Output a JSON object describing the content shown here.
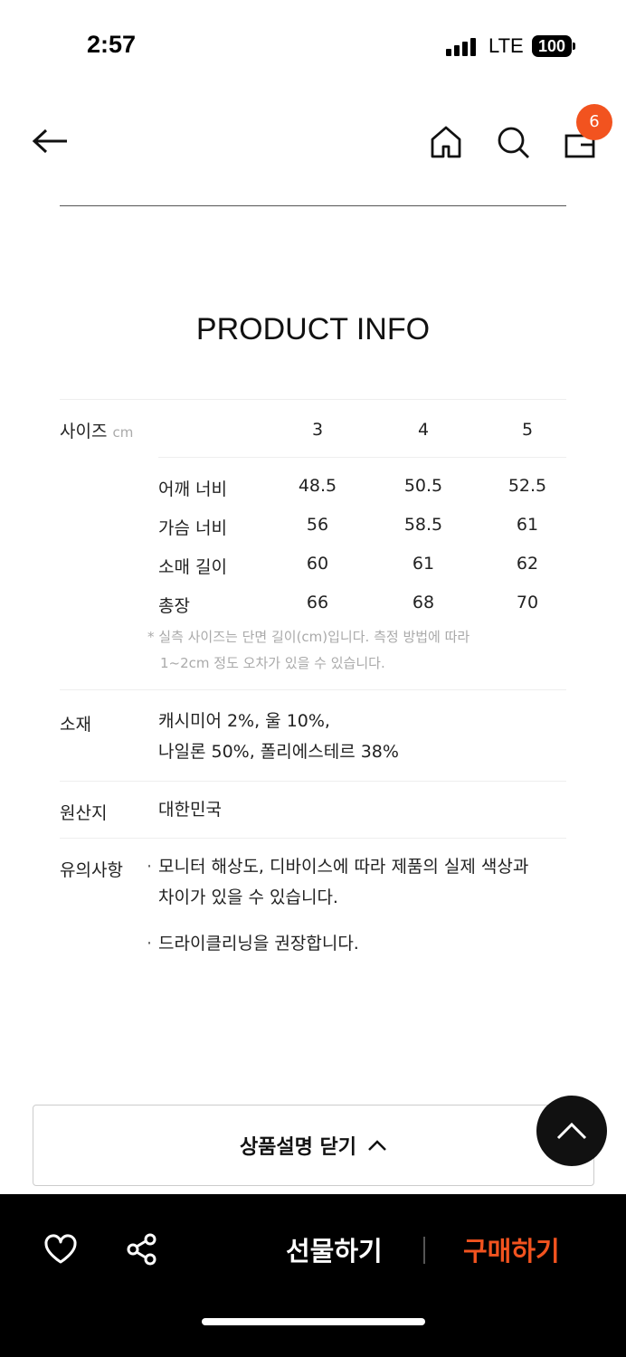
{
  "status_bar": {
    "time": "2:57",
    "network": "LTE",
    "battery": "100"
  },
  "nav": {
    "cart_count": "6",
    "badge_color": "#f2531f"
  },
  "title": "PRODUCT INFO",
  "size_table": {
    "label": "사이즈",
    "unit": "cm",
    "sizes": [
      "3",
      "4",
      "5"
    ],
    "rows": [
      {
        "name": "어깨 너비",
        "values": [
          "48.5",
          "50.5",
          "52.5"
        ]
      },
      {
        "name": "가슴 너비",
        "values": [
          "56",
          "58.5",
          "61"
        ]
      },
      {
        "name": "소매 길이",
        "values": [
          "60",
          "61",
          "62"
        ]
      },
      {
        "name": "총장",
        "values": [
          "66",
          "68",
          "70"
        ]
      }
    ],
    "note_line1": "* 실측 사이즈는 단면 길이(cm)입니다. 측정 방법에 따라",
    "note_line2": "1~2cm 정도 오차가 있을 수 있습니다."
  },
  "material": {
    "label": "소재",
    "line1": "캐시미어 2%, 울 10%,",
    "line2": "나일론 50%, 폴리에스테르 38%"
  },
  "origin": {
    "label": "원산지",
    "value": "대한민국"
  },
  "caution": {
    "label": "유의사항",
    "item1_line1": "모니터 해상도, 디바이스에 따라 제품의 실제 색상과",
    "item1_line2": "차이가 있을 수 있습니다.",
    "item2": "드라이클리닝을 권장합니다."
  },
  "close_button": "상품설명 닫기",
  "bottom_bar": {
    "gift": "선물하기",
    "buy": "구매하기",
    "accent": "#f2531f"
  }
}
